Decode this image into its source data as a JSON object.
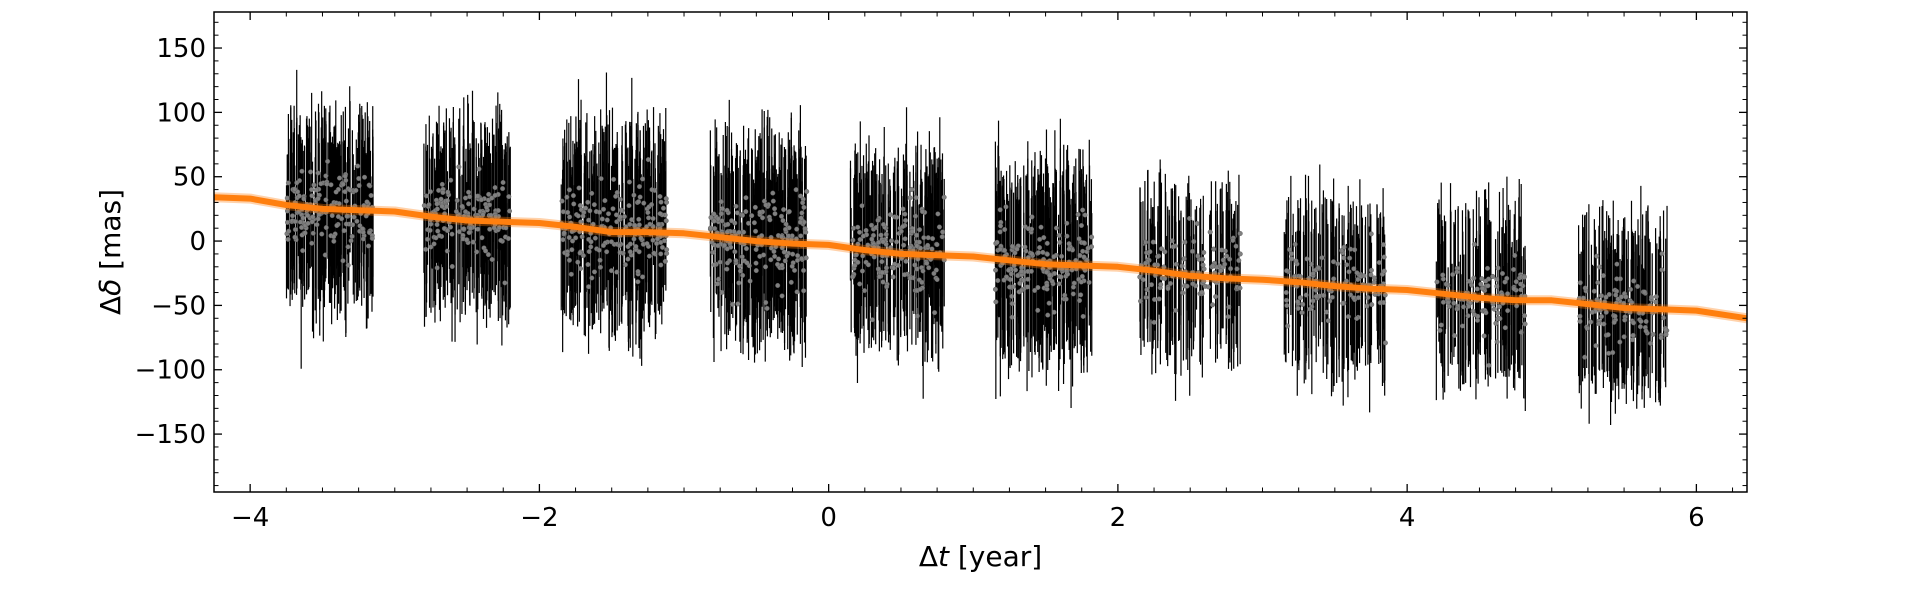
{
  "chart_data": {
    "type": "scatter",
    "title": "",
    "xlabel": {
      "symbol": "Δ",
      "var": "t",
      "unit": " [year]"
    },
    "ylabel": {
      "symbol": "Δ",
      "var": "δ",
      "unit": " [mas]"
    },
    "xlim": [
      -4.25,
      6.35
    ],
    "ylim": [
      -195,
      178
    ],
    "xticks": [
      -4,
      -2,
      0,
      2,
      4,
      6
    ],
    "xtick_labels": [
      "−4",
      "−2",
      "0",
      "2",
      "4",
      "6"
    ],
    "yticks": [
      -150,
      -100,
      -50,
      0,
      50,
      100,
      150
    ],
    "ytick_labels": [
      "−150",
      "−100",
      "−50",
      "0",
      "50",
      "100",
      "150"
    ],
    "grid": false,
    "colors": {
      "points": "#808080",
      "errorbars": "#000000",
      "model": "#ff7f0e"
    },
    "observation_epochs": [
      {
        "x_range": [
          -3.75,
          -3.15
        ],
        "y_center": 25,
        "y_spread": 28,
        "err_half": 55,
        "n_points": 170
      },
      {
        "x_range": [
          -2.8,
          -2.2
        ],
        "y_center": 18,
        "y_spread": 26,
        "err_half": 55,
        "n_points": 160
      },
      {
        "x_range": [
          -1.85,
          -1.12
        ],
        "y_center": 10,
        "y_spread": 30,
        "err_half": 58,
        "n_points": 200
      },
      {
        "x_range": [
          -0.82,
          -0.15
        ],
        "y_center": 2,
        "y_spread": 30,
        "err_half": 58,
        "n_points": 190
      },
      {
        "x_range": [
          0.15,
          0.8
        ],
        "y_center": -6,
        "y_spread": 28,
        "err_half": 55,
        "n_points": 170
      },
      {
        "x_range": [
          1.15,
          1.82
        ],
        "y_center": -16,
        "y_spread": 30,
        "err_half": 58,
        "n_points": 190
      },
      {
        "x_range": [
          2.15,
          2.85
        ],
        "y_center": -25,
        "y_spread": 25,
        "err_half": 52,
        "n_points": 110
      },
      {
        "x_range": [
          3.15,
          3.85
        ],
        "y_center": -33,
        "y_spread": 25,
        "err_half": 52,
        "n_points": 120
      },
      {
        "x_range": [
          4.2,
          4.82
        ],
        "y_center": -42,
        "y_spread": 25,
        "err_half": 52,
        "n_points": 110
      },
      {
        "x_range": [
          5.18,
          5.8
        ],
        "y_center": -52,
        "y_spread": 25,
        "err_half": 52,
        "n_points": 110
      }
    ],
    "model_curve": {
      "x": [
        -4.25,
        -4.0,
        -3.75,
        -3.5,
        -3.25,
        -3.0,
        -2.75,
        -2.5,
        -2.25,
        -2.0,
        -1.75,
        -1.5,
        -1.25,
        -1.0,
        -0.75,
        -0.5,
        -0.25,
        0.0,
        0.25,
        0.5,
        0.75,
        1.0,
        1.25,
        1.5,
        1.75,
        2.0,
        2.25,
        2.5,
        2.75,
        3.0,
        3.25,
        3.5,
        3.75,
        4.0,
        4.25,
        4.5,
        4.75,
        5.0,
        5.25,
        5.5,
        5.75,
        6.0,
        6.35
      ],
      "y": [
        34,
        33,
        28,
        25,
        24,
        23,
        19,
        16,
        15,
        14,
        11,
        7,
        7,
        6,
        3,
        0,
        -2,
        -3,
        -7,
        -10,
        -11,
        -12,
        -15,
        -18,
        -19,
        -20,
        -23,
        -27,
        -29,
        -30,
        -32,
        -35,
        -37,
        -38,
        -41,
        -44,
        -46,
        -46,
        -49,
        -52,
        -53,
        -54,
        -60
      ]
    }
  }
}
